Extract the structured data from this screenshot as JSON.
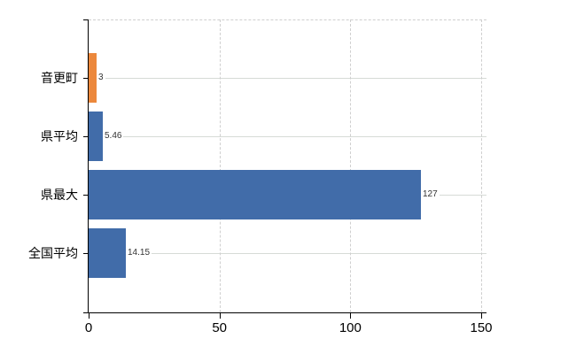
{
  "chart_data": {
    "type": "bar",
    "orientation": "horizontal",
    "title": "",
    "categories": [
      "音更町",
      "県平均",
      "県最大",
      "全国平均"
    ],
    "values": [
      3,
      5.46,
      127,
      14.15
    ],
    "value_labels": [
      "3",
      "5.46",
      "127",
      "14.15"
    ],
    "bar_colors": [
      "#EC883C",
      "#416CA9",
      "#416CA9",
      "#416CA9"
    ],
    "x_ticks": [
      0,
      50,
      100,
      150
    ],
    "x_tick_labels": [
      "0",
      "50",
      "100",
      "150"
    ],
    "xlim": [
      0,
      150
    ],
    "xlabel": "",
    "ylabel": "",
    "grid": true,
    "legend_position": "none"
  },
  "colors": {
    "highlight_bar": "#EC883C",
    "default_bar": "#416CA9",
    "axis": "#000000",
    "gridline_solid": "#D6DBD6",
    "gridline_dashed": "#CFCFCF",
    "category_text": "#000000",
    "value_text": "#333333",
    "background": "#FFFFFF"
  }
}
